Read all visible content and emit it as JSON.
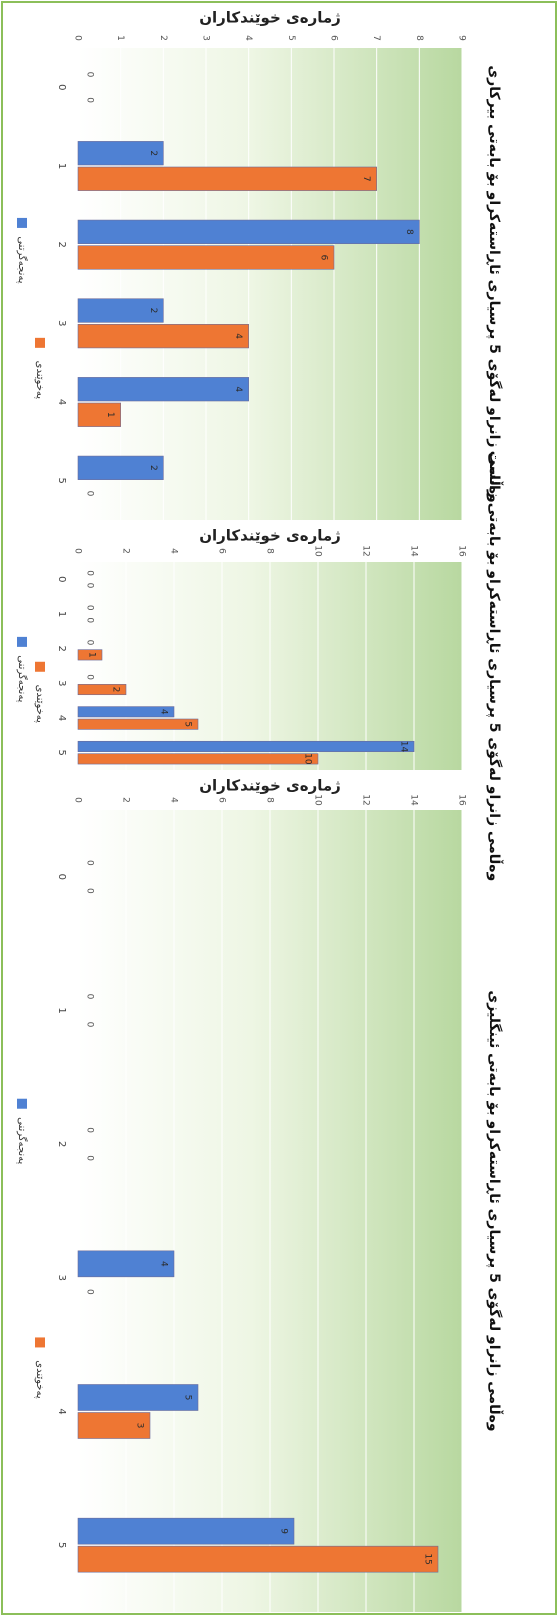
{
  "chart_data": [
    {
      "type": "bar",
      "title": "وەڵامی زانراو لەگۆی 5 پرسیاری ئاڕاستەکراو بۆ بابەتی بیرکاری",
      "ylabel": "ژمارەی خوێندکاران",
      "categories": [
        "0",
        "1",
        "2",
        "3",
        "4",
        "5"
      ],
      "ylim": [
        0,
        9
      ],
      "yticks": [
        0,
        1,
        2,
        3,
        4,
        5,
        6,
        7,
        8,
        9
      ],
      "series": [
        {
          "name": "پەنجەگرتنی",
          "color": "#4f81d3",
          "values": [
            0,
            2,
            8,
            2,
            4,
            2
          ]
        },
        {
          "name": "پەخوێندی",
          "color": "#ee7633",
          "values": [
            0,
            7,
            6,
            4,
            1,
            0
          ]
        }
      ],
      "legend": "left",
      "grid": true
    },
    {
      "type": "bar",
      "title": "وەڵامی زانراو لەگۆی 5 پرسیاری ئاڕاستەکراو بۆ بابەتی زانست",
      "ylabel": "ژمارەی خوێندکاران",
      "categories": [
        "0",
        "1",
        "2",
        "3",
        "4",
        "5"
      ],
      "ylim": [
        0,
        16
      ],
      "yticks": [
        0,
        2,
        4,
        6,
        8,
        10,
        12,
        14,
        16
      ],
      "series": [
        {
          "name": "پەنجەگرتنی",
          "color": "#4f81d3",
          "values": [
            0,
            0,
            0,
            0,
            4,
            14
          ]
        },
        {
          "name": "پەخوێندی",
          "color": "#ee7633",
          "values": [
            0,
            0,
            1,
            2,
            5,
            10
          ]
        }
      ],
      "legend": "left",
      "grid": true
    },
    {
      "type": "bar",
      "title": "وەڵامی زانراو لەگۆی 5 پرسیاری ئاڕاستەکراو بۆ بابەتی ئینگلیزی",
      "ylabel": "ژمارەی خوێندکاران",
      "categories": [
        "0",
        "1",
        "2",
        "3",
        "4",
        "5"
      ],
      "ylim": [
        0,
        16
      ],
      "yticks": [
        0,
        2,
        4,
        6,
        8,
        10,
        12,
        14,
        16
      ],
      "series": [
        {
          "name": "پەنجەگرتنی",
          "color": "#4f81d3",
          "values": [
            0,
            0,
            0,
            4,
            5,
            9
          ]
        },
        {
          "name": "پەخوێندی",
          "color": "#ee7633",
          "values": [
            0,
            0,
            0,
            0,
            3,
            15
          ]
        }
      ],
      "legend": "left",
      "grid": true
    }
  ]
}
